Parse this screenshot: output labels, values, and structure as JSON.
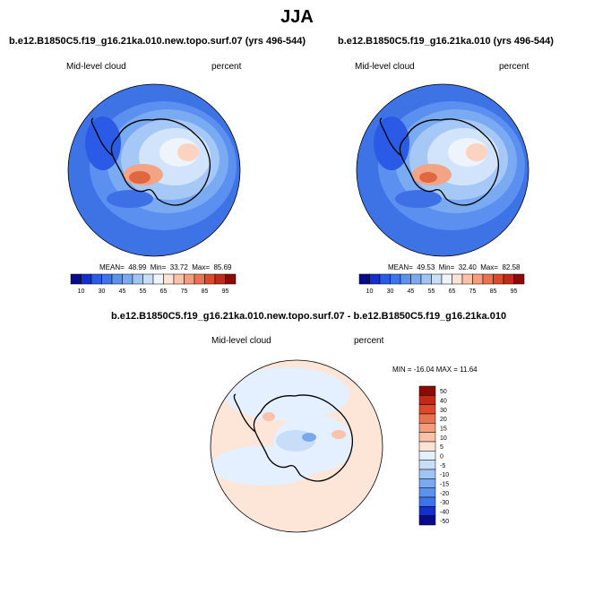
{
  "main_title": "JJA",
  "panels": [
    {
      "title": "b.e12.B1850C5.f19_g16.21ka.010.new.topo.surf.07 (yrs 496-544)",
      "left_label": "Mid-level cloud",
      "right_label": "percent",
      "stats": {
        "mean_label": "MEAN=",
        "mean": "48.99",
        "min_label": "Min=",
        "min": "33.72",
        "max_label": "Max=",
        "max": "85.69"
      },
      "colorbar": {
        "colors": [
          "#0a0a8a",
          "#1530c8",
          "#2a5ae6",
          "#3c75ea",
          "#5a92ee",
          "#7ba9f0",
          "#a0c4f4",
          "#c8def8",
          "#eef4fb",
          "#fde2d6",
          "#fac2a8",
          "#f49c7c",
          "#ea7250",
          "#dc4a2c",
          "#c02a16",
          "#8a0a06"
        ],
        "labels": [
          "10",
          "30",
          "45",
          "55",
          "65",
          "75",
          "85",
          "95"
        ],
        "full_labels": [
          "10",
          "",
          "30",
          "",
          "45",
          "",
          "55",
          "",
          "65",
          "",
          "75",
          "",
          "85",
          "",
          "95"
        ]
      }
    },
    {
      "title": "b.e12.B1850C5.f19_g16.21ka.010 (yrs 496-544)",
      "left_label": "Mid-level cloud",
      "right_label": "percent",
      "stats": {
        "mean_label": "MEAN=",
        "mean": "49.53",
        "min_label": "Min=",
        "min": "32.40",
        "max_label": "Max=",
        "max": "82.58"
      },
      "colorbar": {
        "colors": [
          "#0a0a8a",
          "#1530c8",
          "#2a5ae6",
          "#3c75ea",
          "#5a92ee",
          "#7ba9f0",
          "#a0c4f4",
          "#c8def8",
          "#eef4fb",
          "#fde2d6",
          "#fac2a8",
          "#f49c7c",
          "#ea7250",
          "#dc4a2c",
          "#c02a16",
          "#8a0a06"
        ],
        "labels": [
          "10",
          "30",
          "45",
          "55",
          "65",
          "75",
          "85",
          "95"
        ]
      }
    }
  ],
  "diff_panel": {
    "title": "b.e12.B1850C5.f19_g16.21ka.010.new.topo.surf.07 - b.e12.B1850C5.f19_g16.21ka.010",
    "left_label": "Mid-level cloud",
    "right_label": "percent",
    "minmax": {
      "min_label": "MIN =",
      "min": "-16.04",
      "max_label": "MAX =",
      "max": "11.64"
    },
    "colorbar": {
      "colors": [
        "#8a0a06",
        "#c02a16",
        "#dc4a2c",
        "#ea7250",
        "#f49c7c",
        "#fac2a8",
        "#fde2d6",
        "#e4efff",
        "#c8def8",
        "#a0c4f4",
        "#7ba9f0",
        "#5a92ee",
        "#3c75ea",
        "#1530c8",
        "#0a0a8a"
      ],
      "labels": [
        "50",
        "40",
        "30",
        "20",
        "15",
        "10",
        "5",
        "0",
        "-5",
        "-10",
        "-15",
        "-20",
        "-30",
        "-40",
        "-50"
      ]
    }
  }
}
